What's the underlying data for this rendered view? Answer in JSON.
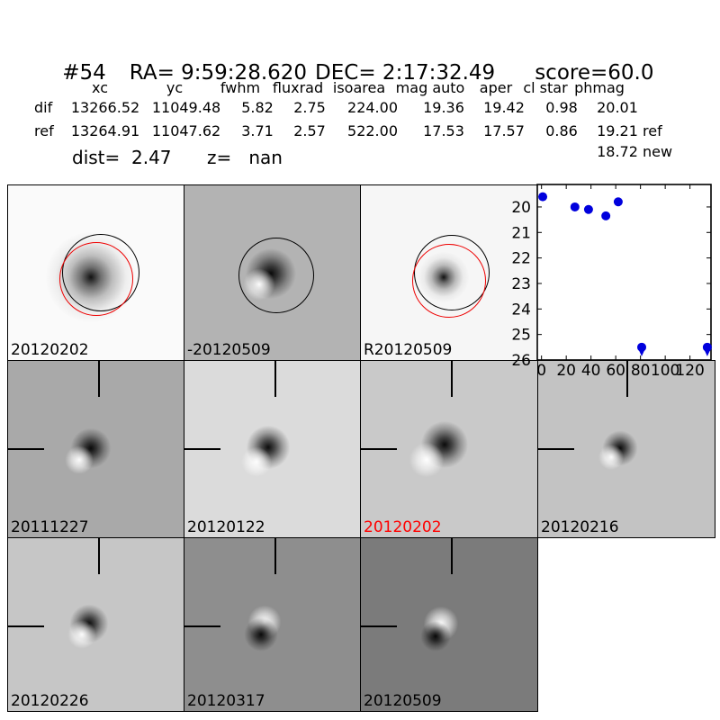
{
  "header": {
    "id": "#54",
    "ra": "RA= 9:59:28.620",
    "dec": "DEC= 2:17:32.49",
    "score": "score=60.0"
  },
  "photometry": {
    "columns": [
      "xc",
      "yc",
      "fwhm",
      "fluxrad",
      "isoarea",
      "mag auto",
      "aper",
      "cl star",
      "phmag"
    ],
    "rows": [
      {
        "label": "dif",
        "values": [
          "13266.52",
          "11049.48",
          "5.82",
          "2.75",
          "224.00",
          "19.36",
          "19.42",
          "0.98",
          "20.01"
        ],
        "suffix": ""
      },
      {
        "label": "ref",
        "values": [
          "13264.91",
          "11047.62",
          "3.71",
          "2.57",
          "522.00",
          "17.53",
          "17.57",
          "0.86",
          "19.21"
        ],
        "suffix": "ref"
      }
    ],
    "extra": {
      "value": "18.72",
      "suffix": "new"
    },
    "dist": "dist=  2.47",
    "z": "z=   nan"
  },
  "cutouts": {
    "row1": [
      {
        "label": "20120202"
      },
      {
        "label": "-20120509"
      },
      {
        "label": "R20120509"
      }
    ],
    "row2": [
      {
        "label": "20111227"
      },
      {
        "label": "20120122"
      },
      {
        "label": "20120202",
        "label_style": "color:#ff0000"
      },
      {
        "label": "20120216"
      }
    ],
    "row3": [
      {
        "label": "20120226"
      },
      {
        "label": "20120317"
      },
      {
        "label": "20120509"
      }
    ]
  },
  "chart_data": {
    "type": "scatter",
    "title": "",
    "xlabel": "",
    "ylabel": "",
    "x": [
      1,
      27,
      38,
      52,
      62,
      81,
      134
    ],
    "y": [
      19.6,
      20.0,
      20.1,
      20.35,
      19.8,
      25.5,
      25.5
    ],
    "upper_limits": [
      false,
      false,
      false,
      false,
      false,
      true,
      true
    ],
    "xticks": [
      0,
      20,
      40,
      60,
      80,
      100,
      120
    ],
    "yticks": [
      20,
      21,
      22,
      23,
      24,
      25,
      26
    ],
    "xlim": [
      -3.4,
      137
    ],
    "ylim": [
      26,
      19.12
    ],
    "y_axis_inverted": true,
    "grid": false,
    "legend": false,
    "marker_color": "#0000dd"
  }
}
